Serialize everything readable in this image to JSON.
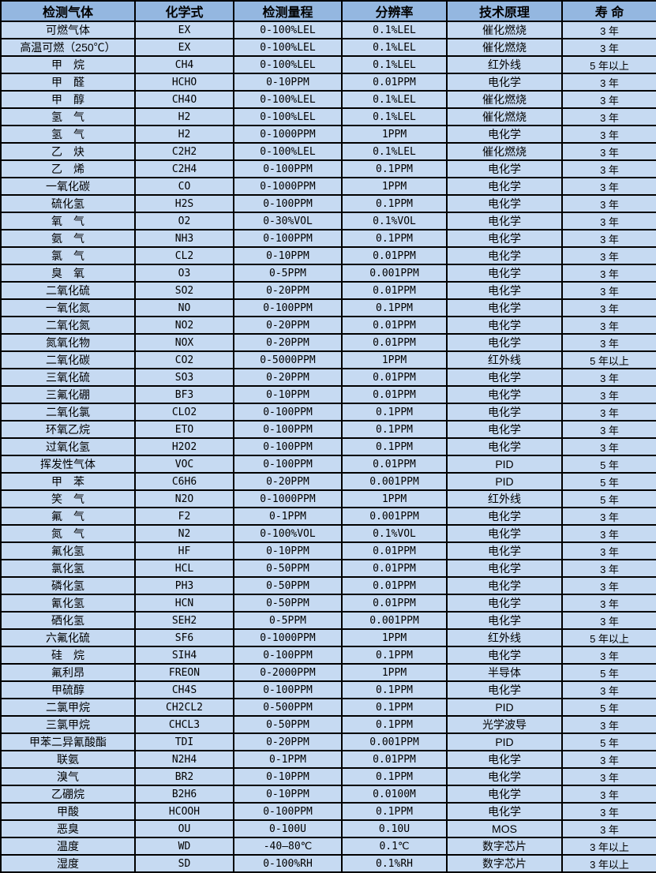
{
  "colors": {
    "header_bg": "#94b7e0",
    "row_bg": "#c6daf2",
    "border": "#000000",
    "text": "#000000"
  },
  "table": {
    "headers": [
      "检测气体",
      "化学式",
      "检测量程",
      "分辨率",
      "技术原理",
      "寿 命"
    ],
    "rows": [
      [
        "可燃气体",
        "EX",
        "0-100%LEL",
        "0.1%LEL",
        "催化燃烧",
        "3 年"
      ],
      [
        "高温可燃（250℃）",
        "EX",
        "0-100%LEL",
        "0.1%LEL",
        "催化燃烧",
        "3 年"
      ],
      [
        "甲　烷",
        "CH4",
        "0-100%LEL",
        "0.1%LEL",
        "红外线",
        "5 年以上"
      ],
      [
        "甲　醛",
        "HCHO",
        "0-10PPM",
        "0.01PPM",
        "电化学",
        "3 年"
      ],
      [
        "甲　醇",
        "CH4O",
        "0-100%LEL",
        "0.1%LEL",
        "催化燃烧",
        "3 年"
      ],
      [
        "氢　气",
        "H2",
        "0-100%LEL",
        "0.1%LEL",
        "催化燃烧",
        "3 年"
      ],
      [
        "氢　气",
        "H2",
        "0-1000PPM",
        "1PPM",
        "电化学",
        "3 年"
      ],
      [
        "乙　炔",
        "C2H2",
        "0-100%LEL",
        "0.1%LEL",
        "催化燃烧",
        "3 年"
      ],
      [
        "乙　烯",
        "C2H4",
        "0-100PPM",
        "0.1PPM",
        "电化学",
        "3 年"
      ],
      [
        "一氧化碳",
        "CO",
        "0-1000PPM",
        "1PPM",
        "电化学",
        "3 年"
      ],
      [
        "硫化氢",
        "H2S",
        "0-100PPM",
        "0.1PPM",
        "电化学",
        "3 年"
      ],
      [
        "氧　气",
        "O2",
        "0-30%VOL",
        "0.1%VOL",
        "电化学",
        "3 年"
      ],
      [
        "氨　气",
        "NH3",
        "0-100PPM",
        "0.1PPM",
        "电化学",
        "3 年"
      ],
      [
        "氯　气",
        "CL2",
        "0-10PPM",
        "0.01PPM",
        "电化学",
        "3 年"
      ],
      [
        "臭　氧",
        "O3",
        "0-5PPM",
        "0.001PPM",
        "电化学",
        "3 年"
      ],
      [
        "二氧化硫",
        "SO2",
        "0-20PPM",
        "0.01PPM",
        "电化学",
        "3 年"
      ],
      [
        "一氧化氮",
        "NO",
        "0-100PPM",
        "0.1PPM",
        "电化学",
        "3 年"
      ],
      [
        "二氧化氮",
        "NO2",
        "0-20PPM",
        "0.01PPM",
        "电化学",
        "3 年"
      ],
      [
        "氮氧化物",
        "NOX",
        "0-20PPM",
        "0.01PPM",
        "电化学",
        "3 年"
      ],
      [
        "二氧化碳",
        "CO2",
        "0-5000PPM",
        "1PPM",
        "红外线",
        "5 年以上"
      ],
      [
        "三氧化硫",
        "SO3",
        "0-20PPM",
        "0.01PPM",
        "电化学",
        "3 年"
      ],
      [
        "三氟化硼",
        "BF3",
        "0-10PPM",
        "0.01PPM",
        "电化学",
        "3 年"
      ],
      [
        "二氧化氯",
        "CLO2",
        "0-100PPM",
        "0.1PPM",
        "电化学",
        "3 年"
      ],
      [
        "环氧乙烷",
        "ETO",
        "0-100PPM",
        "0.1PPM",
        "电化学",
        "3 年"
      ],
      [
        "过氧化氢",
        "H2O2",
        "0-100PPM",
        "0.1PPM",
        "电化学",
        "3 年"
      ],
      [
        "挥发性气体",
        "VOC",
        "0-100PPM",
        "0.01PPM",
        "PID",
        "5 年"
      ],
      [
        "甲　苯",
        "C6H6",
        "0-20PPM",
        "0.001PPM",
        "PID",
        "5 年"
      ],
      [
        "笑　气",
        "N2O",
        "0-1000PPM",
        "1PPM",
        "红外线",
        "5 年"
      ],
      [
        "氟　气",
        "F2",
        "0-1PPM",
        "0.001PPM",
        "电化学",
        "3 年"
      ],
      [
        "氮　气",
        "N2",
        "0-100%VOL",
        "0.1%VOL",
        "电化学",
        "3 年"
      ],
      [
        "氟化氢",
        "HF",
        "0-10PPM",
        "0.01PPM",
        "电化学",
        "3 年"
      ],
      [
        "氯化氢",
        "HCL",
        "0-50PPM",
        "0.01PPM",
        "电化学",
        "3 年"
      ],
      [
        "磷化氢",
        "PH3",
        "0-50PPM",
        "0.01PPM",
        "电化学",
        "3 年"
      ],
      [
        "氰化氢",
        "HCN",
        "0-50PPM",
        "0.01PPM",
        "电化学",
        "3 年"
      ],
      [
        "硒化氢",
        "SEH2",
        "0-5PPM",
        "0.001PPM",
        "电化学",
        "3 年"
      ],
      [
        "六氟化硫",
        "SF6",
        "0-1000PPM",
        "1PPM",
        "红外线",
        "5 年以上"
      ],
      [
        "硅　烷",
        "SIH4",
        "0-100PPM",
        "0.1PPM",
        "电化学",
        "3 年"
      ],
      [
        "氟利昂",
        "FREON",
        "0-2000PPM",
        "1PPM",
        "半导体",
        "5 年"
      ],
      [
        "甲硫醇",
        "CH4S",
        "0-100PPM",
        "0.1PPM",
        "电化学",
        "3 年"
      ],
      [
        "二氯甲烷",
        "CH2CL2",
        "0-500PPM",
        "0.1PPM",
        "PID",
        "5 年"
      ],
      [
        "三氯甲烷",
        "CHCL3",
        "0-50PPM",
        "0.1PPM",
        "光学波导",
        "3 年"
      ],
      [
        "甲苯二异氰酸酯",
        "TDI",
        "0-20PPM",
        "0.001PPM",
        "PID",
        "5 年"
      ],
      [
        "联氨",
        "N2H4",
        "0-1PPM",
        "0.01PPM",
        "电化学",
        "3 年"
      ],
      [
        "溴气",
        "BR2",
        "0-10PPM",
        "0.1PPM",
        "电化学",
        "3 年"
      ],
      [
        "乙硼烷",
        "B2H6",
        "0-10PPM",
        "0.0100M",
        "电化学",
        "3 年"
      ],
      [
        "甲酸",
        "HCOOH",
        "0-100PPM",
        "0.1PPM",
        "电化学",
        "3 年"
      ],
      [
        "恶臭",
        "OU",
        "0-100U",
        "0.10U",
        "MOS",
        "3 年"
      ],
      [
        "温度",
        "WD",
        "-40—80℃",
        "0.1℃",
        "数字芯片",
        "3 年以上"
      ],
      [
        "湿度",
        "SD",
        "0-100%RH",
        "0.1%RH",
        "数字芯片",
        "3 年以上"
      ]
    ]
  }
}
